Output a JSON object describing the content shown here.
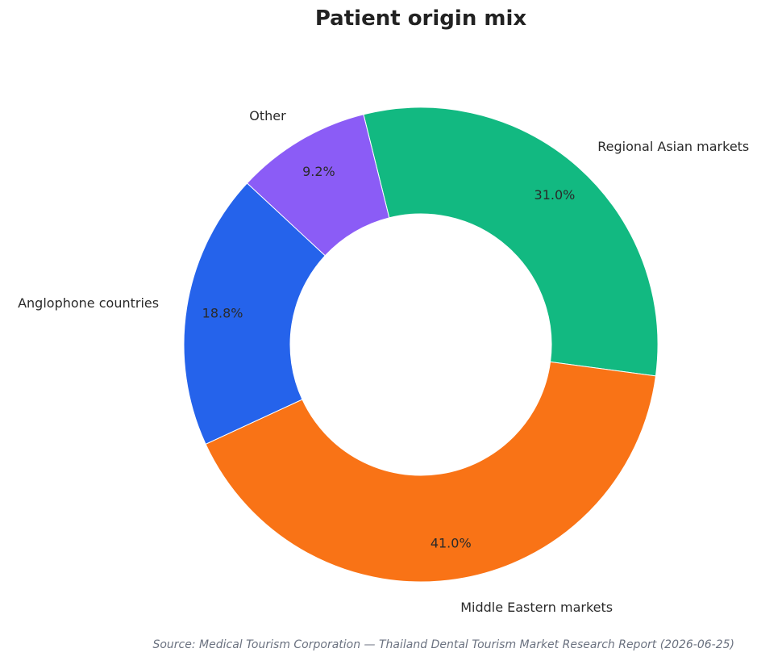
{
  "chart_data": {
    "type": "pie",
    "donut": true,
    "title": "Patient origin mix",
    "categories": [
      "Regional Asian markets",
      "Middle Eastern markets",
      "Anglophone countries",
      "Other"
    ],
    "values": [
      31.0,
      41.0,
      18.8,
      9.2
    ],
    "percent_labels": [
      "31.0%",
      "41.0%",
      "18.8%",
      "9.2%"
    ],
    "colors": [
      "#12b981",
      "#f97316",
      "#2563eb",
      "#8b5cf6"
    ],
    "start_angle_deg": 104,
    "direction": "clockwise",
    "legend": "none"
  },
  "source": "Source: Medical Tourism Corporation — Thailand Dental Tourism Market Research Report (2026-06-25)"
}
